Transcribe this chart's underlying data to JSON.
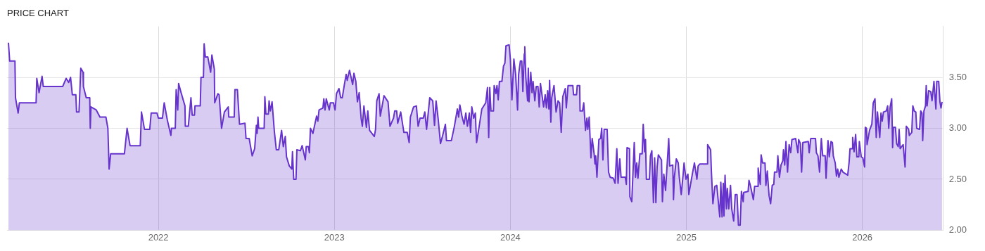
{
  "chart_data": {
    "type": "area",
    "title": "PRICE CHART",
    "xlim": [
      2021.14,
      2026.46
    ],
    "xticks": [
      2022,
      2023,
      2024,
      2025,
      2026
    ],
    "ylim": [
      2,
      4
    ],
    "yticks": [
      {
        "value": 2,
        "label": "2.00"
      },
      {
        "value": 2.5,
        "label": "2.50"
      },
      {
        "value": 3,
        "label": "3.00"
      },
      {
        "value": 3.5,
        "label": "3.50"
      }
    ],
    "grid": true,
    "legend": false,
    "marker": "none",
    "series": [
      {
        "color": "#6633cc",
        "x": [
          2021.148,
          2021.155,
          2021.185,
          2021.188,
          2021.203,
          2021.21,
          2021.305,
          2021.309,
          2021.322,
          2021.339,
          2021.346,
          2021.456,
          2021.476,
          2021.49,
          2021.501,
          2021.511,
          2021.531,
          2021.535,
          2021.549,
          2021.559,
          2021.572,
          2021.574,
          2021.59,
          2021.61,
          2021.613,
          2021.617,
          2021.647,
          2021.668,
          2021.702,
          2021.713,
          2021.72,
          2021.729,
          2021.807,
          2021.822,
          2021.839,
          2021.897,
          2021.904,
          2021.921,
          2021.951,
          2021.959,
          2021.992,
          2022.0,
          2022.023,
          2022.033,
          2022.051,
          2022.071,
          2022.074,
          2022.096,
          2022.101,
          2022.11,
          2022.115,
          2022.129,
          2022.151,
          2022.153,
          2022.17,
          2022.185,
          2022.192,
          2022.205,
          2022.208,
          2022.238,
          2022.242,
          2022.256,
          2022.26,
          2022.267,
          2022.281,
          2022.297,
          2022.304,
          2022.318,
          2022.32,
          2022.338,
          2022.345,
          2022.359,
          2022.375,
          2022.397,
          2022.4,
          2022.431,
          2022.435,
          2022.449,
          2022.461,
          2022.492,
          2022.498,
          2022.516,
          2022.533,
          2022.547,
          2022.557,
          2022.561,
          2022.566,
          2022.57,
          2022.601,
          2022.605,
          2022.611,
          2022.625,
          2022.629,
          2022.636,
          2022.646,
          2022.659,
          2022.67,
          2022.684,
          2022.7,
          2022.71,
          2022.721,
          2022.728,
          2022.744,
          2022.758,
          2022.762,
          2022.769,
          2022.782,
          2022.787,
          2022.807,
          2022.817,
          2022.835,
          2022.84,
          2022.853,
          2022.858,
          2022.864,
          2022.878,
          2022.899,
          2022.906,
          2022.913,
          2022.935,
          2022.94,
          2022.947,
          2022.954,
          2022.971,
          2022.977,
          2022.995,
          2023.004,
          2023.012,
          2023.026,
          2023.036,
          2023.045,
          2023.056,
          2023.067,
          2023.073,
          2023.086,
          2023.104,
          2023.111,
          2023.122,
          2023.131,
          2023.141,
          2023.152,
          2023.159,
          2023.168,
          2023.182,
          2023.19,
          2023.2,
          2023.227,
          2023.234,
          2023.241,
          2023.254,
          2023.261,
          2023.282,
          2023.305,
          2023.316,
          2023.336,
          2023.343,
          2023.354,
          2023.36,
          2023.377,
          2023.395,
          2023.414,
          2023.425,
          2023.432,
          2023.45,
          2023.466,
          2023.476,
          2023.487,
          2023.505,
          2023.514,
          2023.524,
          2023.542,
          2023.559,
          2023.569,
          2023.578,
          2023.59,
          2023.603,
          2023.614,
          2023.631,
          2023.637,
          2023.665,
          2023.682,
          2023.699,
          2023.706,
          2023.713,
          2023.726,
          2023.737,
          2023.747,
          2023.756,
          2023.767,
          2023.774,
          2023.781,
          2023.792,
          2023.801,
          2023.808,
          2023.822,
          2023.838,
          2023.86,
          2023.87,
          2023.877,
          2023.883,
          2023.89,
          2023.904,
          2023.908,
          2023.918,
          2023.924,
          2023.931,
          2023.938,
          2023.952,
          2023.961,
          2023.969,
          2023.975,
          2023.993,
          2024.0,
          2024.009,
          2024.02,
          2024.03,
          2024.041,
          2024.047,
          2024.057,
          2024.065,
          2024.071,
          2024.079,
          2024.082,
          2024.088,
          2024.098,
          2024.102,
          2024.106,
          2024.116,
          2024.123,
          2024.129,
          2024.139,
          2024.147,
          2024.157,
          2024.164,
          2024.171,
          2024.189,
          2024.198,
          2024.205,
          2024.212,
          2024.219,
          2024.223,
          2024.23,
          2024.235,
          2024.248,
          2024.26,
          2024.271,
          2024.28,
          2024.289,
          2024.298,
          2024.312,
          2024.318,
          2024.328,
          2024.355,
          2024.359,
          2024.376,
          2024.38,
          2024.394,
          2024.396,
          2024.41,
          2024.417,
          2024.427,
          2024.435,
          2024.44,
          2024.448,
          2024.458,
          2024.465,
          2024.476,
          2024.481,
          2024.485,
          2024.492,
          2024.503,
          2024.513,
          2024.519,
          2024.526,
          2024.533,
          2024.55,
          2024.558,
          2024.567,
          2024.585,
          2024.595,
          2024.599,
          2024.605,
          2024.612,
          2024.622,
          2024.629,
          2024.653,
          2024.659,
          2024.663,
          2024.677,
          2024.679,
          2024.69,
          2024.704,
          2024.711,
          2024.718,
          2024.725,
          2024.736,
          2024.749,
          2024.755,
          2024.763,
          2024.768,
          2024.773,
          2024.79,
          2024.796,
          2024.804,
          2024.813,
          2024.82,
          2024.827,
          2024.834,
          2024.841,
          2024.859,
          2024.864,
          2024.872,
          2024.882,
          2024.889,
          2024.9,
          2024.905,
          2024.923,
          2024.927,
          2024.932,
          2024.943,
          2024.954,
          2024.96,
          2024.971,
          2024.982,
          2024.987,
          2024.998,
          2025.009,
          2025.014,
          2025.023,
          2025.036,
          2025.046,
          2025.06,
          2025.067,
          2025.077,
          2025.118,
          2025.121,
          2025.138,
          2025.142,
          2025.151,
          2025.162,
          2025.173,
          2025.19,
          2025.196,
          2025.203,
          2025.21,
          2025.214,
          2025.22,
          2025.228,
          2025.233,
          2025.241,
          2025.251,
          2025.258,
          2025.269,
          2025.278,
          2025.288,
          2025.296,
          2025.306,
          2025.313,
          2025.323,
          2025.326,
          2025.351,
          2025.356,
          2025.365,
          2025.381,
          2025.388,
          2025.406,
          2025.408,
          2025.42,
          2025.425,
          2025.433,
          2025.447,
          2025.452,
          2025.46,
          2025.47,
          2025.479,
          2025.488,
          2025.497,
          2025.501,
          2025.515,
          2025.52,
          2025.529,
          2025.538,
          2025.548,
          2025.552,
          2025.559,
          2025.566,
          2025.575,
          2025.584,
          2025.593,
          2025.6,
          2025.621,
          2025.634,
          2025.638,
          2025.648,
          2025.655,
          2025.662,
          2025.693,
          2025.698,
          2025.707,
          2025.734,
          2025.739,
          2025.748,
          2025.757,
          2025.767,
          2025.775,
          2025.789,
          2025.794,
          2025.805,
          2025.812,
          2025.822,
          2025.83,
          2025.835,
          2025.846,
          2025.853,
          2025.86,
          2025.867,
          2025.88,
          2025.89,
          2025.917,
          2025.925,
          2025.93,
          2025.942,
          2025.945,
          2025.953,
          2025.962,
          2025.969,
          2025.98,
          2025.983,
          2025.994,
          2026.003,
          2026.013,
          2026.017,
          2026.024,
          2026.027,
          2026.041,
          2026.054,
          2026.062,
          2026.072,
          2026.079,
          2026.086,
          2026.099,
          2026.106,
          2026.113,
          2026.12,
          2026.136,
          2026.144,
          2026.15,
          2026.158,
          2026.167,
          2026.172,
          2026.177,
          2026.188,
          2026.195,
          2026.204,
          2026.209,
          2026.215,
          2026.232,
          2026.243,
          2026.25,
          2026.263,
          2026.267,
          2026.281,
          2026.287,
          2026.295,
          2026.304,
          2026.309,
          2026.325,
          2026.332,
          2026.339,
          2026.343,
          2026.35,
          2026.359,
          2026.363,
          2026.368,
          2026.377,
          2026.389,
          2026.396,
          2026.407,
          2026.418,
          2026.423,
          2026.434,
          2026.441,
          2026.447,
          2026.453
        ],
        "values": [
          3.84,
          3.66,
          3.66,
          3.3,
          3.15,
          3.25,
          3.25,
          3.49,
          3.35,
          3.51,
          3.41,
          3.41,
          3.49,
          3.45,
          3.5,
          3.33,
          3.33,
          3.16,
          3.16,
          3.59,
          3.55,
          3.41,
          3.3,
          3.3,
          3.0,
          3.21,
          3.18,
          3.11,
          3.11,
          3.0,
          2.6,
          2.75,
          2.75,
          3.0,
          2.83,
          2.83,
          3.16,
          2.99,
          2.99,
          3.15,
          3.15,
          3.1,
          3.1,
          3.25,
          3.08,
          2.93,
          3.0,
          3.0,
          3.38,
          3.18,
          3.44,
          3.35,
          3.22,
          3.02,
          3.02,
          3.3,
          3.13,
          3.13,
          3.22,
          3.22,
          3.5,
          3.5,
          3.83,
          3.7,
          3.7,
          3.55,
          3.72,
          3.58,
          3.25,
          3.34,
          3.33,
          3.0,
          3.16,
          3.21,
          3.11,
          3.11,
          3.38,
          3.38,
          3.04,
          3.05,
          2.9,
          2.9,
          2.73,
          2.8,
          3.03,
          2.95,
          3.11,
          3.0,
          3.0,
          3.31,
          3.14,
          3.14,
          3.27,
          3.17,
          3.26,
          2.97,
          2.79,
          2.79,
          2.98,
          2.82,
          2.92,
          2.72,
          2.63,
          2.6,
          2.77,
          2.5,
          2.5,
          2.79,
          2.78,
          2.83,
          2.69,
          2.82,
          2.82,
          2.76,
          3.0,
          2.95,
          3.12,
          3.07,
          3.18,
          3.2,
          3.29,
          3.18,
          3.29,
          3.18,
          3.25,
          3.25,
          3.18,
          3.34,
          3.39,
          3.3,
          3.3,
          3.42,
          3.53,
          3.47,
          3.57,
          3.43,
          3.54,
          3.46,
          3.26,
          3.35,
          3.1,
          3.02,
          3.22,
          3.01,
          3.17,
          2.98,
          2.92,
          2.99,
          3.27,
          3.34,
          3.12,
          3.32,
          3.26,
          3.02,
          3.1,
          3.17,
          3.17,
          3.05,
          3.16,
          2.96,
          2.96,
          2.86,
          3.11,
          3.21,
          3.22,
          3.02,
          3.1,
          3.1,
          3.16,
          2.99,
          3.3,
          3.27,
          3.03,
          3.27,
          3.09,
          2.85,
          2.92,
          3.04,
          2.88,
          2.88,
          3.02,
          3.19,
          3.11,
          3.23,
          3.11,
          3.04,
          3.15,
          3.02,
          3.15,
          2.96,
          3.21,
          3.1,
          3.15,
          2.86,
          3.01,
          3.19,
          3.25,
          3.4,
          2.91,
          3.4,
          3.17,
          3.17,
          3.42,
          3.34,
          3.42,
          3.28,
          3.46,
          3.46,
          3.61,
          3.64,
          3.81,
          3.82,
          3.68,
          3.28,
          3.68,
          3.53,
          3.18,
          3.53,
          3.66,
          3.66,
          3.36,
          3.73,
          3.8,
          3.5,
          3.27,
          3.59,
          3.26,
          3.55,
          3.35,
          3.46,
          3.27,
          3.41,
          3.41,
          3.21,
          3.44,
          3.21,
          3.33,
          3.2,
          3.37,
          3.19,
          3.47,
          3.06,
          3.3,
          3.42,
          3.16,
          3.27,
          3.25,
          2.96,
          3.31,
          3.39,
          3.2,
          3.42,
          3.42,
          3.33,
          3.33,
          3.42,
          3.42,
          3.17,
          3.17,
          3.25,
          2.98,
          3.1,
          2.99,
          3.11,
          2.71,
          2.9,
          2.75,
          2.65,
          2.73,
          2.52,
          2.89,
          2.9,
          3.0,
          2.69,
          2.99,
          2.99,
          2.57,
          2.52,
          2.51,
          2.46,
          2.59,
          2.8,
          2.46,
          2.7,
          2.52,
          2.52,
          2.45,
          2.81,
          2.8,
          2.33,
          2.28,
          2.86,
          2.52,
          2.66,
          2.51,
          2.75,
          2.75,
          3.04,
          2.77,
          2.89,
          2.5,
          2.5,
          2.73,
          2.78,
          2.27,
          2.71,
          2.27,
          2.62,
          2.74,
          2.69,
          2.28,
          2.55,
          2.39,
          2.59,
          2.9,
          2.63,
          2.64,
          2.3,
          2.52,
          2.7,
          2.66,
          2.52,
          2.35,
          2.55,
          2.66,
          2.5,
          2.55,
          2.35,
          2.44,
          2.57,
          2.66,
          2.5,
          2.63,
          2.65,
          2.65,
          2.84,
          2.79,
          2.59,
          2.26,
          2.43,
          2.44,
          2.13,
          2.47,
          2.13,
          2.46,
          2.14,
          2.54,
          2.21,
          2.41,
          2.21,
          2.44,
          2.21,
          2.09,
          2.35,
          2.35,
          2.05,
          2.05,
          2.38,
          2.28,
          2.37,
          2.38,
          2.49,
          2.43,
          2.3,
          2.43,
          2.43,
          2.61,
          2.45,
          2.74,
          2.66,
          2.66,
          2.44,
          2.58,
          2.34,
          2.26,
          2.44,
          2.45,
          2.57,
          2.57,
          2.73,
          2.52,
          2.64,
          2.68,
          2.79,
          2.64,
          2.87,
          2.57,
          2.84,
          2.76,
          2.89,
          2.9,
          2.76,
          2.89,
          2.85,
          2.57,
          2.86,
          2.87,
          2.76,
          2.9,
          2.9,
          2.76,
          2.73,
          2.57,
          2.9,
          2.73,
          2.73,
          2.51,
          2.88,
          2.72,
          2.87,
          2.86,
          2.73,
          2.66,
          2.53,
          2.6,
          2.52,
          2.6,
          2.57,
          2.54,
          2.67,
          2.8,
          2.8,
          2.91,
          2.77,
          2.94,
          2.72,
          2.72,
          2.87,
          2.72,
          2.71,
          2.62,
          3.01,
          3.0,
          2.84,
          2.98,
          3.04,
          3.25,
          3.29,
          2.91,
          3.16,
          2.91,
          3.15,
          3.07,
          3.16,
          3.17,
          3.22,
          3.0,
          3.21,
          3.29,
          2.81,
          3.01,
          3.01,
          2.85,
          2.82,
          2.99,
          2.8,
          2.84,
          2.62,
          3.02,
          2.99,
          2.93,
          2.96,
          3.22,
          3.17,
          3.16,
          3.0,
          2.99,
          3.17,
          3.15,
          2.88,
          3.17,
          3.22,
          3.42,
          3.22,
          3.37,
          3.36,
          3.27,
          3.46,
          3.19,
          3.46,
          3.46,
          3.26,
          3.2,
          3.26
        ]
      }
    ]
  }
}
